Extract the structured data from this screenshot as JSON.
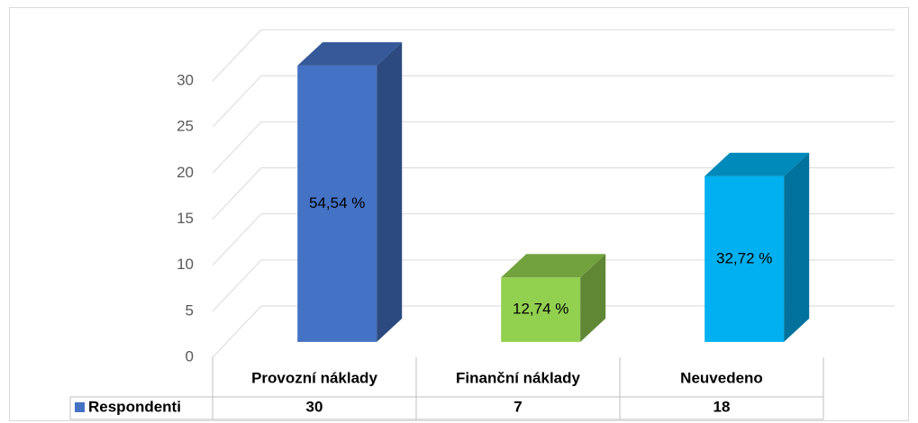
{
  "chart_data": {
    "type": "bar3d",
    "categories": [
      "Provozní náklady",
      "Finanční náklady",
      "Neuvedeno"
    ],
    "series": [
      {
        "name": "Respondenti",
        "color": "#4472c4",
        "values": [
          30,
          7,
          18
        ]
      }
    ],
    "point_colors": [
      "#4472c4",
      "#92d050",
      "#00b0f0"
    ],
    "data_labels": [
      "54,54 %",
      "12,74 %",
      "32,72 %"
    ],
    "ylim": [
      0,
      30
    ],
    "yticks": [
      0,
      5,
      10,
      15,
      20,
      25,
      30
    ],
    "grid": true,
    "data_table": true
  }
}
